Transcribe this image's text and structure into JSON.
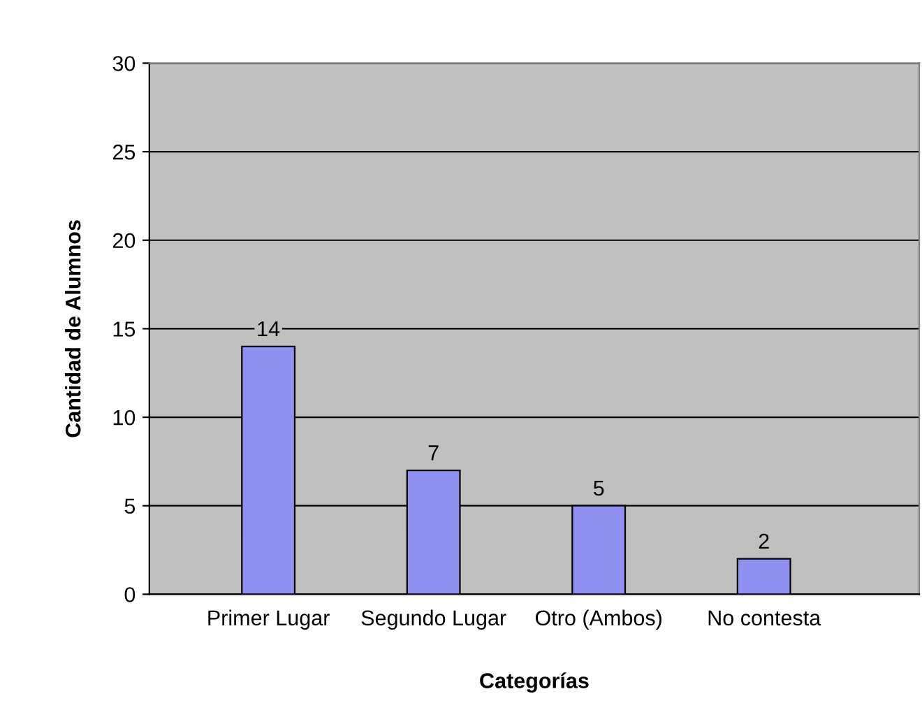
{
  "chart_data": {
    "type": "bar",
    "xlabel": "Categorías",
    "ylabel": "Cantidad de Alumnos",
    "categories": [
      "Primer Lugar",
      "Segundo Lugar",
      "Otro (Ambos)",
      "No contesta"
    ],
    "values": [
      14,
      7,
      5,
      2
    ],
    "color": "#9090f0",
    "ylim": [
      0,
      30
    ],
    "yticks": [
      0,
      5,
      10,
      15,
      20,
      25,
      30
    ],
    "grid": "y",
    "data_labels": true,
    "legend": false
  }
}
